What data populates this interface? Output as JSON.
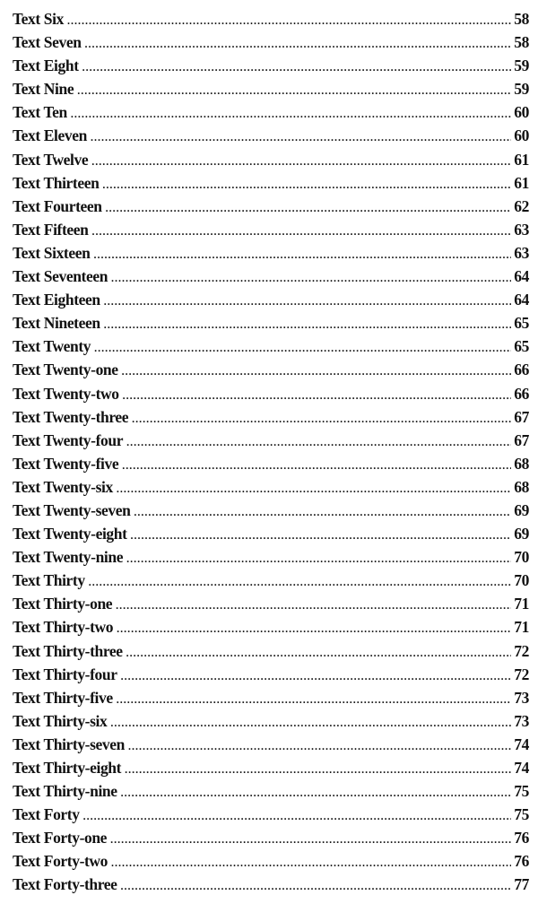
{
  "entries": [
    {
      "title": "Text Six",
      "page": "58"
    },
    {
      "title": "Text Seven",
      "page": "58"
    },
    {
      "title": "Text Eight",
      "page": "59"
    },
    {
      "title": "Text Nine",
      "page": "59"
    },
    {
      "title": "Text Ten",
      "page": "60"
    },
    {
      "title": "Text Eleven",
      "page": "60"
    },
    {
      "title": "Text Twelve",
      "page": "61"
    },
    {
      "title": "Text Thirteen",
      "page": "61"
    },
    {
      "title": "Text Fourteen",
      "page": "62"
    },
    {
      "title": "Text Fifteen",
      "page": "63"
    },
    {
      "title": "Text Sixteen",
      "page": "63"
    },
    {
      "title": "Text Seventeen",
      "page": "64"
    },
    {
      "title": "Text Eighteen",
      "page": "64"
    },
    {
      "title": "Text Nineteen",
      "page": "65"
    },
    {
      "title": "Text Twenty",
      "page": "65"
    },
    {
      "title": "Text Twenty-one",
      "page": "66"
    },
    {
      "title": "Text Twenty-two",
      "page": "66"
    },
    {
      "title": "Text Twenty-three",
      "page": "67"
    },
    {
      "title": "Text Twenty-four",
      "page": "67"
    },
    {
      "title": "Text Twenty-five",
      "page": "68"
    },
    {
      "title": "Text Twenty-six",
      "page": "68"
    },
    {
      "title": "Text Twenty-seven",
      "page": "69"
    },
    {
      "title": "Text Twenty-eight",
      "page": "69"
    },
    {
      "title": "Text Twenty-nine",
      "page": "70"
    },
    {
      "title": "Text Thirty",
      "page": "70"
    },
    {
      "title": "Text Thirty-one",
      "page": "71"
    },
    {
      "title": "Text Thirty-two",
      "page": "71"
    },
    {
      "title": "Text Thirty-three",
      "page": "72"
    },
    {
      "title": "Text Thirty-four",
      "page": "72"
    },
    {
      "title": "Text Thirty-five",
      "page": "73"
    },
    {
      "title": "Text Thirty-six",
      "page": "73"
    },
    {
      "title": "Text Thirty-seven",
      "page": "74"
    },
    {
      "title": "Text Thirty-eight",
      "page": "74"
    },
    {
      "title": "Text Thirty-nine",
      "page": "75"
    },
    {
      "title": "Text Forty",
      "page": "75"
    },
    {
      "title": "Text Forty-one",
      "page": "76"
    },
    {
      "title": "Text Forty-two",
      "page": "76"
    },
    {
      "title": "Text Forty-three",
      "page": "77"
    }
  ]
}
